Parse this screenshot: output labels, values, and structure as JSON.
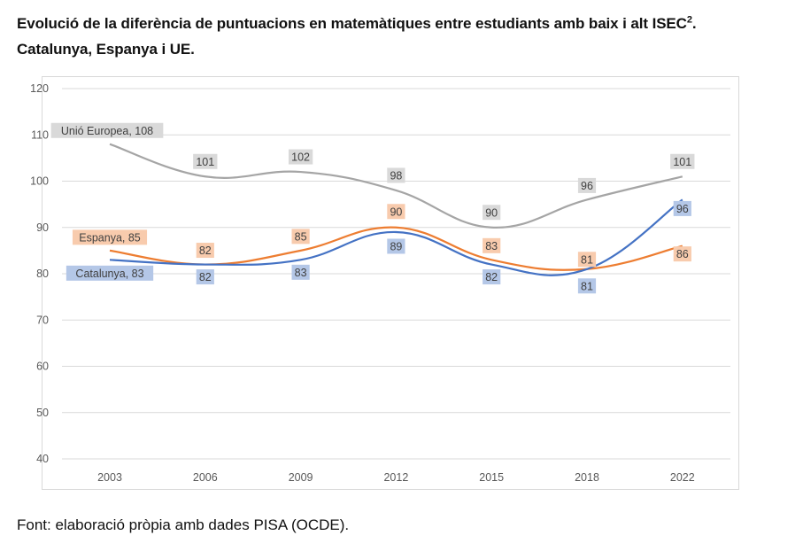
{
  "title_line1": "Evolució de la diferència de puntuacions en matemàtiques entre estudiants amb baix i alt ISEC",
  "title_superscript": "2",
  "title_line1_end": ".",
  "title_line2": "Catalunya, Espanya i UE.",
  "source": "Font: elaboració pròpia amb dades PISA (OCDE).",
  "chart_data": {
    "type": "line",
    "title": "Evolució de la diferència de puntuacions en matemàtiques entre estudiants amb baix i alt ISEC. Catalunya, Espanya i UE.",
    "xlabel": "",
    "ylabel": "",
    "categories": [
      "2003",
      "2006",
      "2009",
      "2012",
      "2015",
      "2018",
      "2022"
    ],
    "ylim": [
      40,
      120
    ],
    "yticks": [
      40,
      50,
      60,
      70,
      80,
      90,
      100,
      110,
      120
    ],
    "grid": true,
    "smooth": true,
    "series": [
      {
        "name": "Unió Europea",
        "color": "#a5a5a5",
        "label_bg": "#d9d9d9",
        "values": [
          108,
          101,
          102,
          98,
          90,
          96,
          101
        ],
        "first_label": "Unió Europea, 108"
      },
      {
        "name": "Espanya",
        "color": "#ed7d31",
        "label_bg": "#f8cbad",
        "values": [
          85,
          82,
          85,
          90,
          83,
          81,
          86
        ],
        "first_label": "Espanya, 85"
      },
      {
        "name": "Catalunya",
        "color": "#4472c4",
        "label_bg": "#b4c7e7",
        "values": [
          83,
          82,
          83,
          89,
          82,
          81,
          96
        ],
        "first_label": "Catalunya, 83"
      }
    ]
  }
}
